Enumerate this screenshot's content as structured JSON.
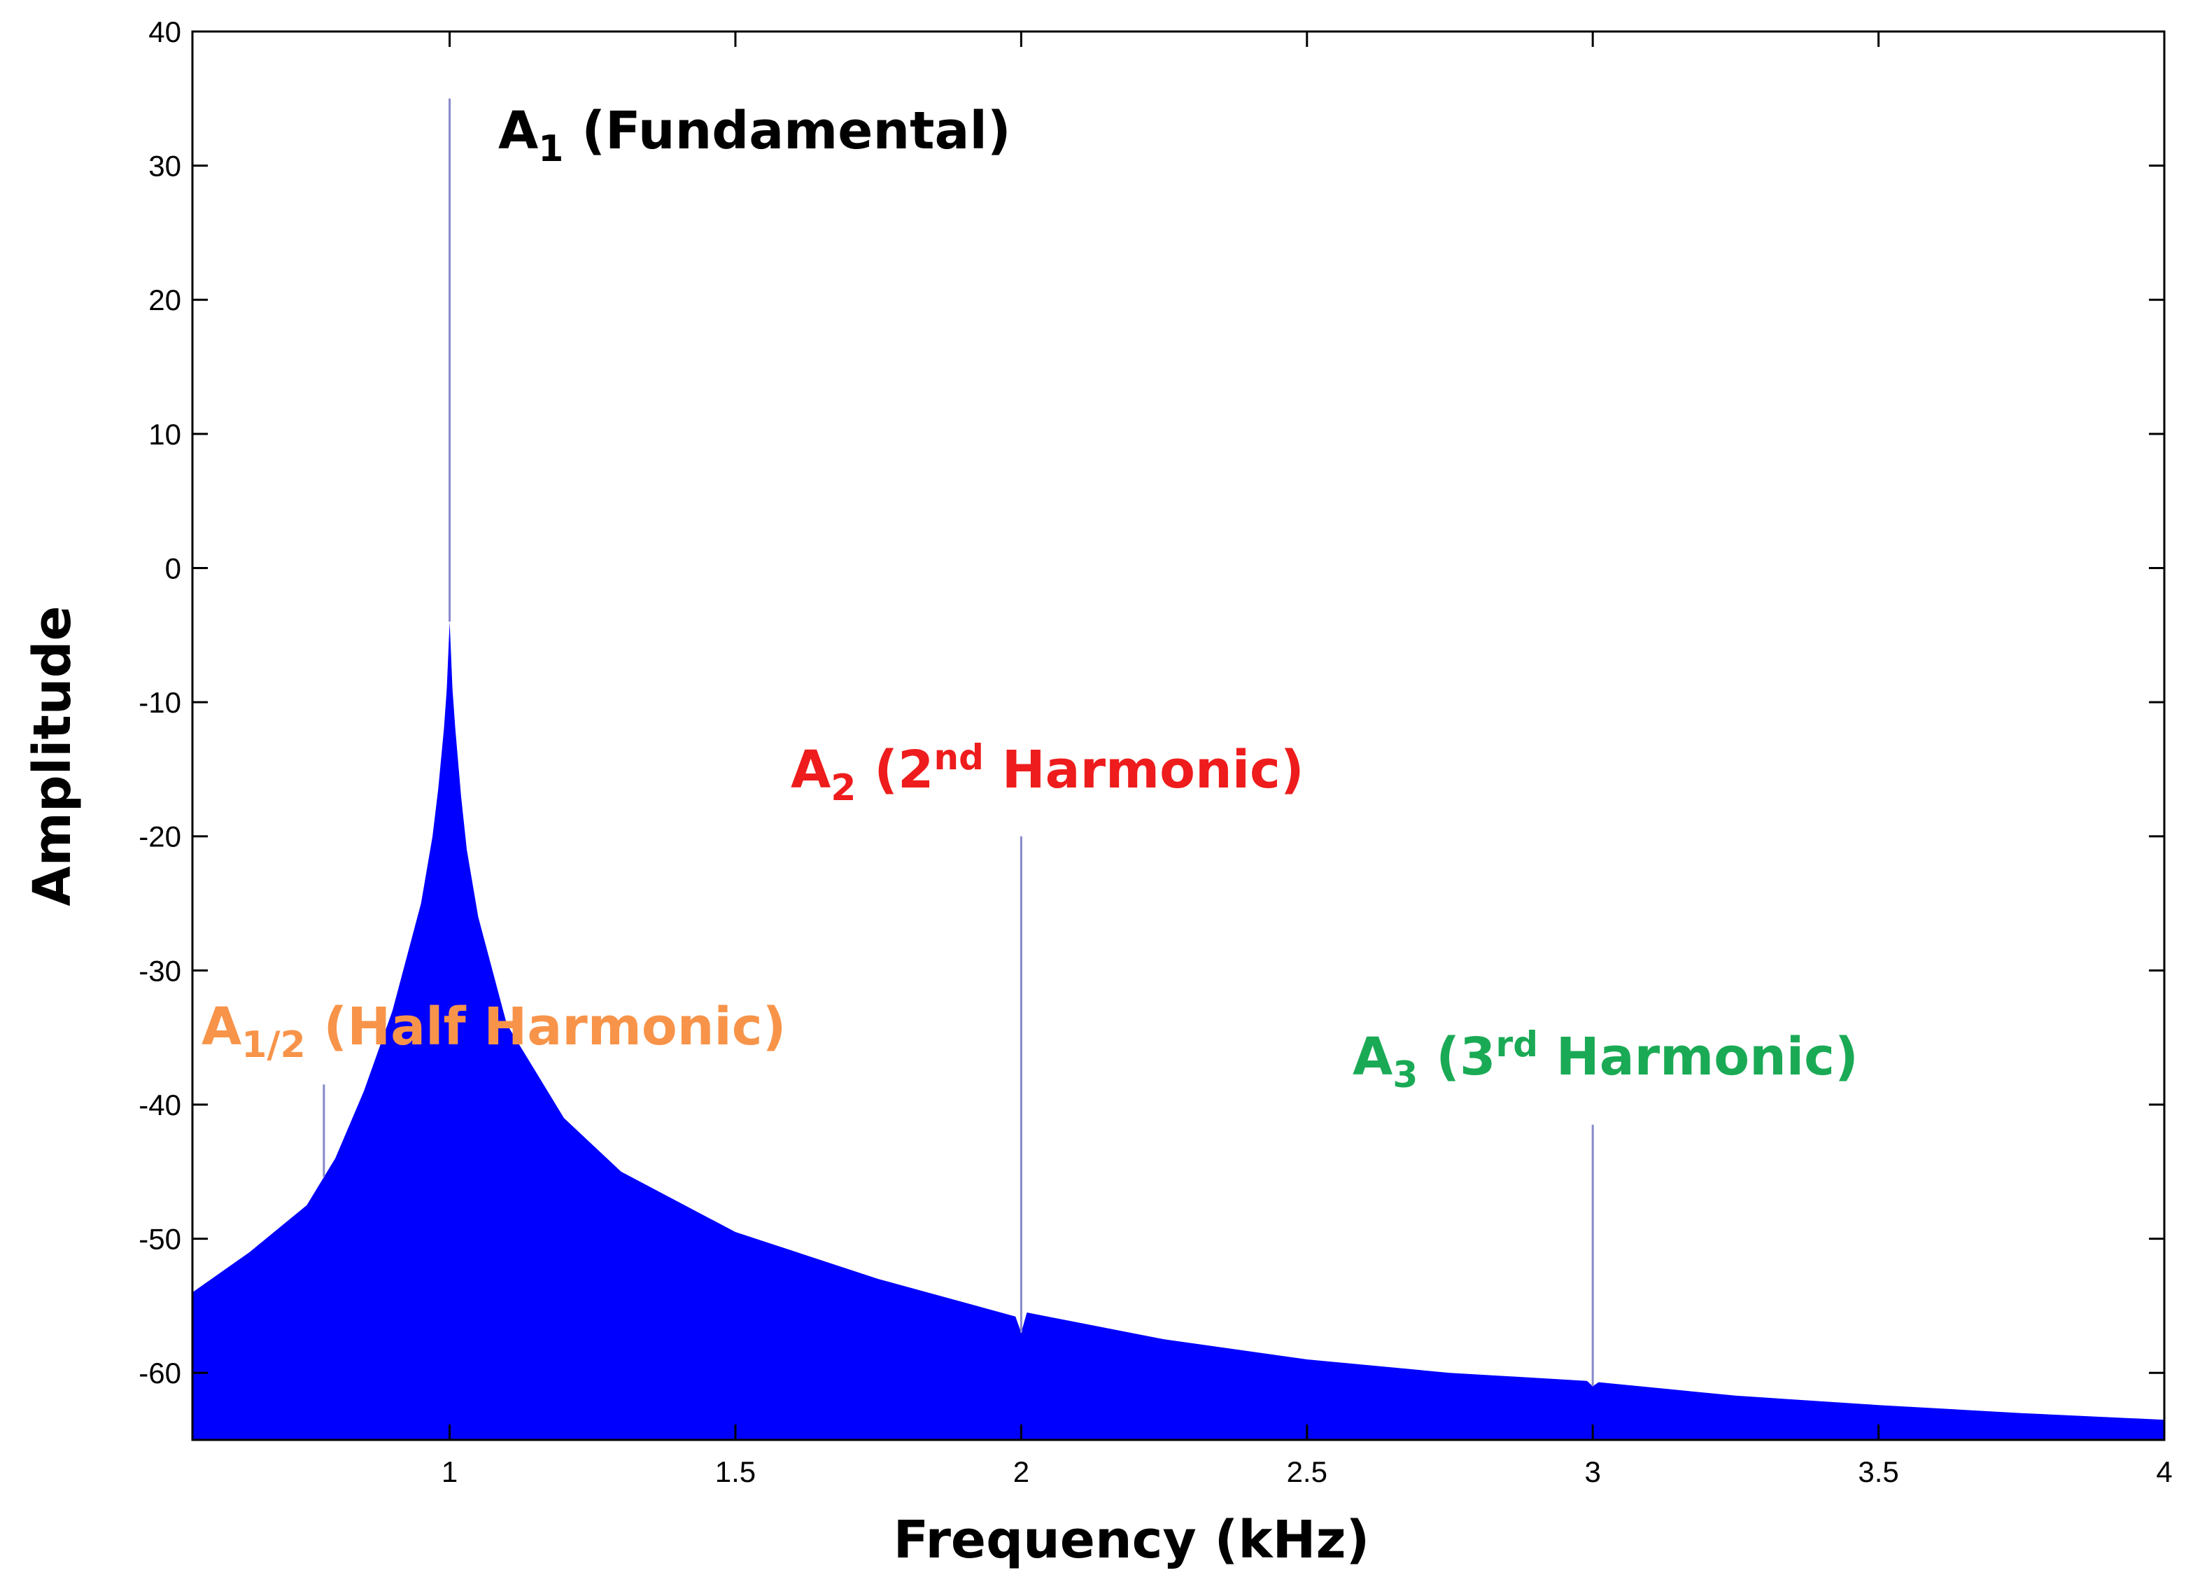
{
  "chart_data": {
    "type": "area",
    "title": "",
    "xlabel": "Frequency (kHz)",
    "ylabel": "Amplitude",
    "xlim": [
      0.55,
      4
    ],
    "ylim": [
      -65,
      40
    ],
    "x_ticks": [
      1,
      1.5,
      2,
      2.5,
      3,
      3.5,
      4
    ],
    "x_tick_labels": [
      "1",
      "1.5",
      "2",
      "2.5",
      "3",
      "3.5",
      "4"
    ],
    "y_ticks": [
      40,
      30,
      20,
      10,
      0,
      -10,
      -20,
      -30,
      -40,
      -50,
      -60
    ],
    "y_tick_labels": [
      "40",
      "30",
      "20",
      "10",
      "0",
      "-10",
      "-20",
      "-30",
      "-40",
      "-50",
      "-60"
    ],
    "grid": false,
    "fill_color": "#0000ff",
    "peak_line_color": "#8888cc",
    "envelope": {
      "x": [
        0.55,
        0.65,
        0.75,
        0.8,
        0.85,
        0.9,
        0.95,
        0.97,
        0.98,
        0.99,
        0.995,
        1.0,
        1.005,
        1.01,
        1.02,
        1.03,
        1.05,
        1.1,
        1.2,
        1.3,
        1.5,
        1.75,
        1.99,
        2.0,
        2.01,
        2.25,
        2.5,
        2.75,
        2.99,
        3.0,
        3.01,
        3.25,
        3.5,
        3.75,
        4.0
      ],
      "y": [
        -54,
        -51,
        -47.5,
        -44,
        -39,
        -33,
        -25,
        -20,
        -16.5,
        -12,
        -9,
        -4,
        -9,
        -12,
        -17,
        -21,
        -26,
        -34,
        -41,
        -45,
        -49.5,
        -53,
        -55.8,
        -57,
        -55.5,
        -57.5,
        -59,
        -60,
        -60.6,
        -61,
        -60.7,
        -61.7,
        -62.4,
        -63,
        -63.5
      ]
    },
    "peaks": [
      {
        "x": 0.78,
        "y": -38.5
      },
      {
        "x": 1.0,
        "y": 35
      },
      {
        "x": 2.0,
        "y": -20
      },
      {
        "x": 3.0,
        "y": -41.5
      }
    ],
    "annotations": [
      {
        "main": "A",
        "sub": "1",
        "sup": "",
        "rest": " (Fundamental)",
        "color": "#000000"
      },
      {
        "main": "A",
        "sub": "2",
        "sup": "",
        "rest_pre": " (2",
        "sup_text": "nd",
        "rest": " Harmonic)",
        "color": "#ee1c1c"
      },
      {
        "main": "A",
        "sub": "1/2",
        "sup": "",
        "rest": " (Half Harmonic)",
        "color": "#f7944a"
      },
      {
        "main": "A",
        "sub": "3",
        "sup": "",
        "rest_pre": " (3",
        "sup_text": "rd",
        "rest": " Harmonic)",
        "color": "#1aaa55"
      }
    ]
  }
}
